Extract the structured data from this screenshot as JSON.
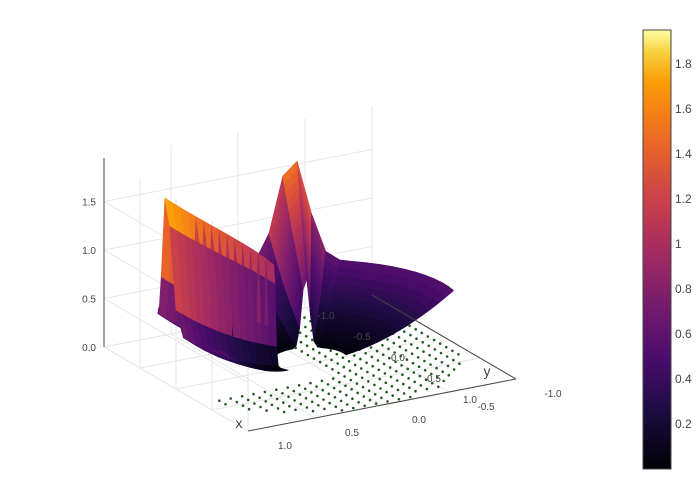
{
  "chart_data": {
    "type": "surface",
    "title": "",
    "surface": {
      "description_z": "z = r^2 on a half disk wedge rising to spikes near the two edges of a cut",
      "colorscale": "Inferno",
      "zmin": 0.0,
      "zmax": 1.95
    },
    "scatter": {
      "mode": "markers",
      "color": "#1f5a1f",
      "note_z": 0
    },
    "axes": {
      "x": {
        "title": "x",
        "ticks": [
          "-1.0",
          "-0.5",
          "0.0",
          "0.5",
          "1.0"
        ],
        "range": [
          -1,
          1
        ]
      },
      "y": {
        "title": "y",
        "ticks": [
          "1.0",
          "0.5",
          "0.0",
          "-0.5",
          "-1.0"
        ],
        "range": [
          -1,
          1
        ]
      },
      "z": {
        "title": "",
        "ticks": [
          "0.0",
          "0.5",
          "1.0",
          "1.5"
        ],
        "range": [
          0,
          1.95
        ]
      }
    },
    "colorbar": {
      "ticks": [
        "1.8",
        "1.6",
        "1.4",
        "1.2",
        "1",
        "0.8",
        "0.6",
        "0.4",
        "0.2"
      ],
      "values": [
        1.8,
        1.6,
        1.4,
        1.2,
        1.0,
        0.8,
        0.6,
        0.4,
        0.2
      ],
      "range": [
        0,
        1.95
      ]
    }
  }
}
